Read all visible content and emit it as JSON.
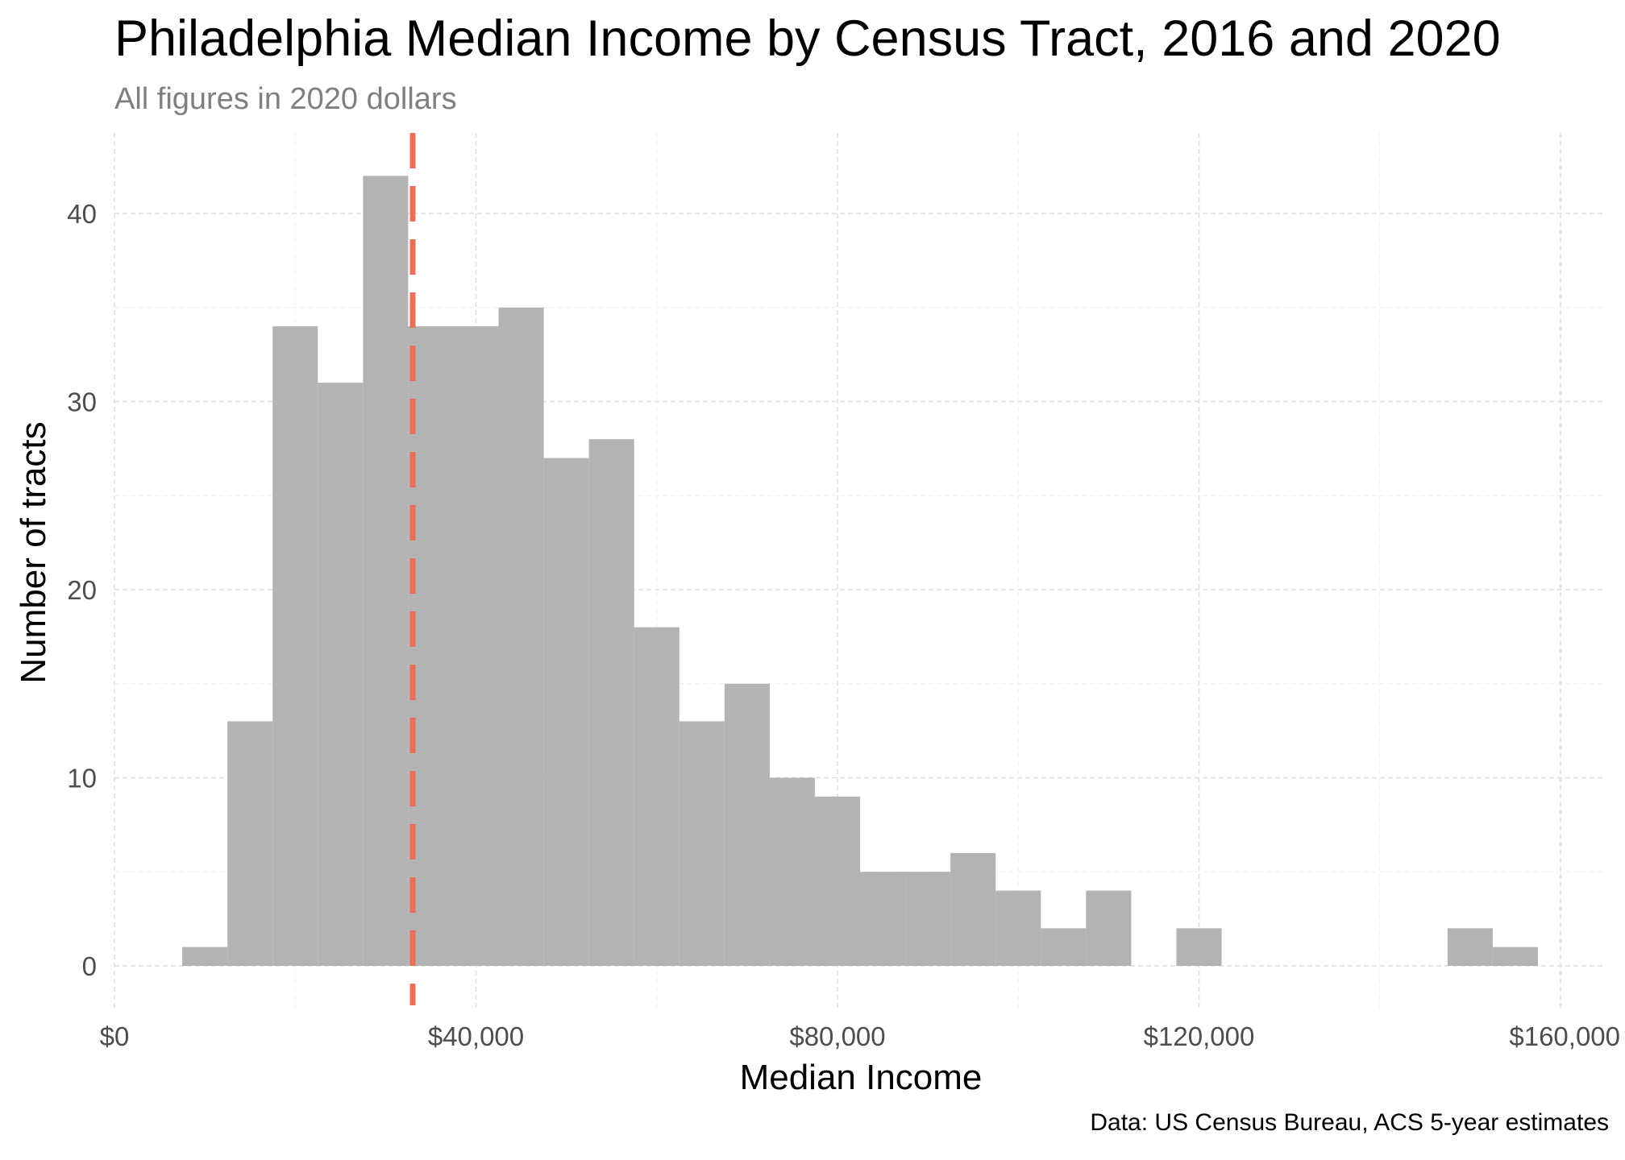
{
  "chart_data": {
    "type": "bar",
    "title": "Philadelphia Median Income by Census Tract, 2016 and 2020",
    "subtitle": "All figures in 2020 dollars",
    "caption": "Data: US Census Bureau, ACS 5-year estimates",
    "xlabel": "Median Income",
    "ylabel": "Number of tracts",
    "xlim": [
      0,
      160000
    ],
    "ylim": [
      0,
      42
    ],
    "x_ticks": [
      0,
      40000,
      80000,
      120000,
      160000
    ],
    "x_tick_labels": [
      "$0",
      "$40,000",
      "$80,000",
      "$120,000",
      "$160,000"
    ],
    "y_ticks": [
      0,
      10,
      20,
      30,
      40
    ],
    "y_tick_labels": [
      "0",
      "10",
      "20",
      "30",
      "40"
    ],
    "grid": true,
    "bin_width": 5000,
    "bins": [
      {
        "x_start": 7500,
        "x_end": 12500,
        "count": 1
      },
      {
        "x_start": 12500,
        "x_end": 17500,
        "count": 13
      },
      {
        "x_start": 17500,
        "x_end": 22500,
        "count": 34
      },
      {
        "x_start": 22500,
        "x_end": 27500,
        "count": 31
      },
      {
        "x_start": 27500,
        "x_end": 32500,
        "count": 42
      },
      {
        "x_start": 32500,
        "x_end": 37500,
        "count": 34
      },
      {
        "x_start": 37500,
        "x_end": 42500,
        "count": 34
      },
      {
        "x_start": 42500,
        "x_end": 47500,
        "count": 35
      },
      {
        "x_start": 47500,
        "x_end": 52500,
        "count": 27
      },
      {
        "x_start": 52500,
        "x_end": 57500,
        "count": 28
      },
      {
        "x_start": 57500,
        "x_end": 62500,
        "count": 18
      },
      {
        "x_start": 62500,
        "x_end": 67500,
        "count": 13
      },
      {
        "x_start": 67500,
        "x_end": 72500,
        "count": 15
      },
      {
        "x_start": 72500,
        "x_end": 77500,
        "count": 10
      },
      {
        "x_start": 77500,
        "x_end": 82500,
        "count": 9
      },
      {
        "x_start": 82500,
        "x_end": 87500,
        "count": 5
      },
      {
        "x_start": 87500,
        "x_end": 92500,
        "count": 5
      },
      {
        "x_start": 92500,
        "x_end": 97500,
        "count": 6
      },
      {
        "x_start": 97500,
        "x_end": 102500,
        "count": 4
      },
      {
        "x_start": 102500,
        "x_end": 107500,
        "count": 2
      },
      {
        "x_start": 107500,
        "x_end": 112500,
        "count": 4
      },
      {
        "x_start": 112500,
        "x_end": 117500,
        "count": 0
      },
      {
        "x_start": 117500,
        "x_end": 122500,
        "count": 2
      },
      {
        "x_start": 122500,
        "x_end": 127500,
        "count": 0
      },
      {
        "x_start": 127500,
        "x_end": 132500,
        "count": 0
      },
      {
        "x_start": 132500,
        "x_end": 137500,
        "count": 0
      },
      {
        "x_start": 137500,
        "x_end": 142500,
        "count": 0
      },
      {
        "x_start": 142500,
        "x_end": 147500,
        "count": 0
      },
      {
        "x_start": 147500,
        "x_end": 152500,
        "count": 2
      },
      {
        "x_start": 152500,
        "x_end": 157500,
        "count": 1
      }
    ],
    "bar_color": "#b3b3b3",
    "reference_line": {
      "x": 33000,
      "style": "dashed",
      "color": "#e8705a"
    }
  }
}
